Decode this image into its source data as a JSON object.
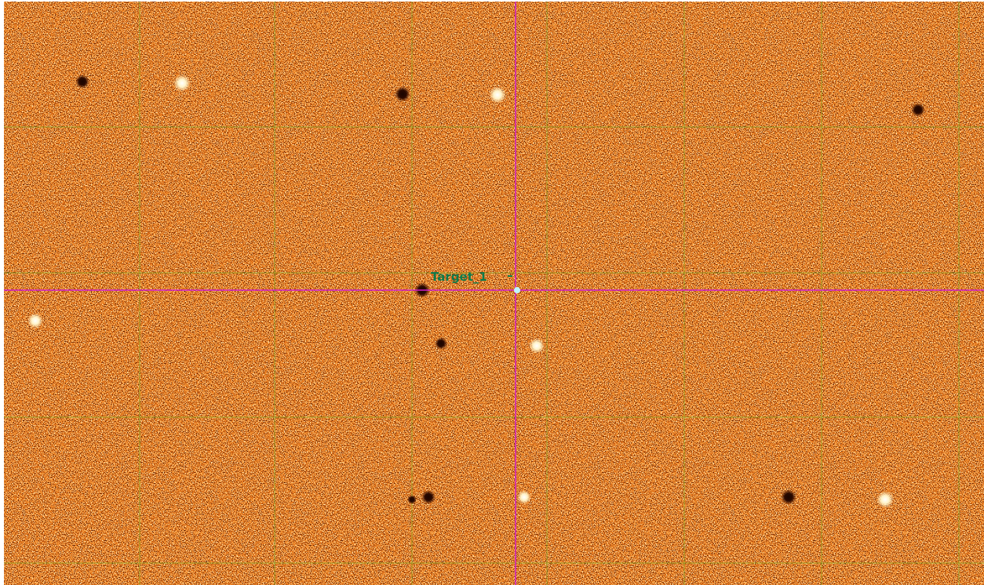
{
  "label": "Target_1"
}
